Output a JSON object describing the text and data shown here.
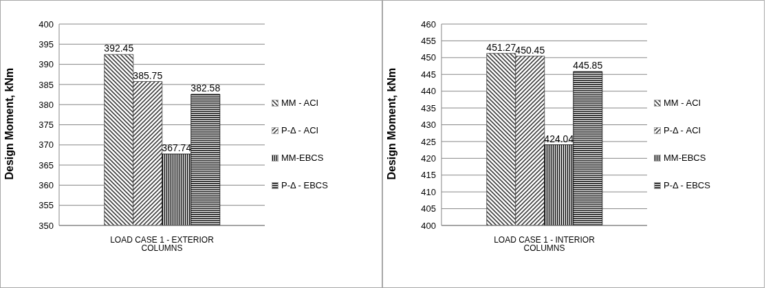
{
  "chart_data": [
    {
      "type": "bar",
      "categories": [
        "LOAD CASE 1 - EXTERIOR COLUMNS"
      ],
      "ylabel": "Design Moment, kNm",
      "ylim": [
        350,
        400
      ],
      "yticks": [
        350,
        355,
        360,
        365,
        370,
        375,
        380,
        385,
        390,
        395,
        400
      ],
      "grid": "y",
      "legend": "right",
      "data_labels": true,
      "series": [
        {
          "name": "MM - ACI",
          "color": "#404040",
          "values": [
            392.45
          ]
        },
        {
          "name": "P-Δ - ACI",
          "color": "#404040",
          "values": [
            385.75
          ]
        },
        {
          "name": "MM-EBCS",
          "color": "#000000",
          "values": [
            367.74
          ]
        },
        {
          "name": "P-Δ - EBCS",
          "color": "#000000",
          "values": [
            382.58
          ]
        }
      ]
    },
    {
      "type": "bar",
      "categories": [
        "LOAD CASE 1 - INTERIOR COLUMNS"
      ],
      "ylabel": "Design Moment, kNm",
      "ylim": [
        400,
        460
      ],
      "yticks": [
        400,
        405,
        410,
        415,
        420,
        425,
        430,
        435,
        440,
        445,
        450,
        455,
        460
      ],
      "grid": "y",
      "legend": "right",
      "data_labels": true,
      "series": [
        {
          "name": "MM - ACI",
          "color": "#404040",
          "values": [
            451.27
          ]
        },
        {
          "name": "P-Δ - ACI",
          "color": "#404040",
          "values": [
            450.45
          ]
        },
        {
          "name": "MM-EBCS",
          "color": "#000000",
          "values": [
            424.04
          ]
        },
        {
          "name": "P-Δ - EBCS",
          "color": "#000000",
          "values": [
            445.85
          ]
        }
      ]
    }
  ]
}
